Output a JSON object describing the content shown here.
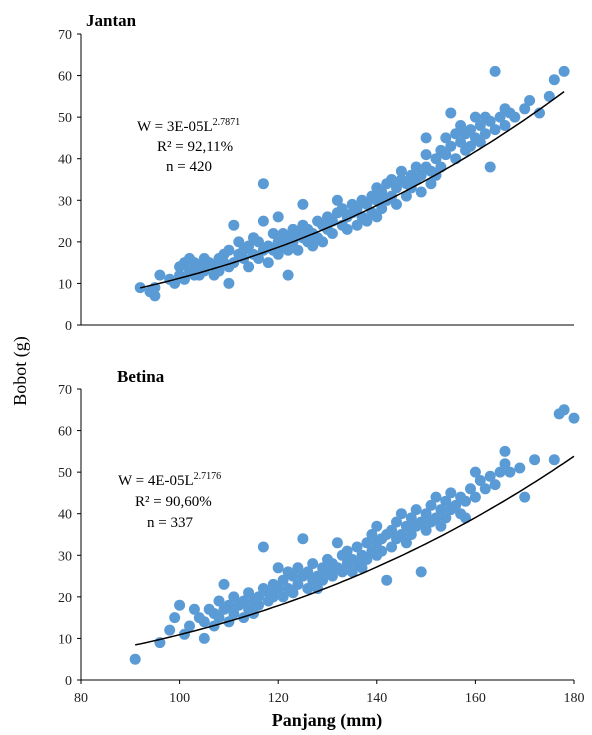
{
  "figure": {
    "ylabel": "Bobot (g)",
    "xlabel": "Panjang (mm)"
  },
  "chart_data": [
    {
      "type": "scatter",
      "title": "Jantan",
      "xlabel": "",
      "ylabel": "Bobot (g)",
      "xlim": [
        80,
        180
      ],
      "ylim": [
        0,
        70
      ],
      "y_ticks": [
        "0",
        "10",
        "20",
        "30",
        "40",
        "50",
        "60",
        "70"
      ],
      "x_ticks": [],
      "equation": {
        "lhs": "W = 3E-05L",
        "exp": "2.7871",
        "r2": "R² = 92,11%",
        "n": "n = 420"
      },
      "trend": {
        "a": 3e-05,
        "b": 2.7871,
        "x_range": [
          92,
          178
        ]
      },
      "points": [
        [
          92,
          9
        ],
        [
          94,
          8
        ],
        [
          95,
          7
        ],
        [
          95,
          9
        ],
        [
          96,
          12
        ],
        [
          98,
          11
        ],
        [
          99,
          10
        ],
        [
          100,
          12
        ],
        [
          100,
          14
        ],
        [
          101,
          15
        ],
        [
          101,
          11
        ],
        [
          102,
          13
        ],
        [
          102,
          16
        ],
        [
          103,
          12
        ],
        [
          103,
          15
        ],
        [
          104,
          14
        ],
        [
          104,
          12
        ],
        [
          105,
          16
        ],
        [
          105,
          13
        ],
        [
          106,
          15
        ],
        [
          107,
          14
        ],
        [
          107,
          12
        ],
        [
          108,
          16
        ],
        [
          108,
          13
        ],
        [
          109,
          17
        ],
        [
          109,
          15
        ],
        [
          110,
          14
        ],
        [
          110,
          18
        ],
        [
          110,
          10
        ],
        [
          111,
          15
        ],
        [
          111,
          24
        ],
        [
          112,
          17
        ],
        [
          112,
          20
        ],
        [
          113,
          16
        ],
        [
          113,
          18
        ],
        [
          114,
          14
        ],
        [
          114,
          19
        ],
        [
          115,
          17
        ],
        [
          115,
          21
        ],
        [
          116,
          16
        ],
        [
          116,
          20
        ],
        [
          117,
          18
        ],
        [
          117,
          34
        ],
        [
          117,
          25
        ],
        [
          118,
          19
        ],
        [
          118,
          15
        ],
        [
          119,
          22
        ],
        [
          119,
          18
        ],
        [
          120,
          20
        ],
        [
          120,
          17
        ],
        [
          120,
          26
        ],
        [
          121,
          19
        ],
        [
          121,
          22
        ],
        [
          122,
          21
        ],
        [
          122,
          18
        ],
        [
          122,
          12
        ],
        [
          123,
          23
        ],
        [
          123,
          20
        ],
        [
          124,
          22
        ],
        [
          124,
          18
        ],
        [
          125,
          24
        ],
        [
          125,
          21
        ],
        [
          125,
          29
        ],
        [
          126,
          20
        ],
        [
          126,
          23
        ],
        [
          127,
          22
        ],
        [
          127,
          19
        ],
        [
          128,
          25
        ],
        [
          128,
          21
        ],
        [
          129,
          24
        ],
        [
          129,
          20
        ],
        [
          130,
          26
        ],
        [
          130,
          23
        ],
        [
          131,
          22
        ],
        [
          131,
          25
        ],
        [
          132,
          30
        ],
        [
          132,
          27
        ],
        [
          133,
          24
        ],
        [
          133,
          28
        ],
        [
          134,
          26
        ],
        [
          134,
          23
        ],
        [
          135,
          29
        ],
        [
          135,
          27
        ],
        [
          136,
          28
        ],
        [
          136,
          24
        ],
        [
          137,
          26
        ],
        [
          137,
          30
        ],
        [
          138,
          29
        ],
        [
          138,
          25
        ],
        [
          139,
          31
        ],
        [
          139,
          27
        ],
        [
          140,
          30
        ],
        [
          140,
          33
        ],
        [
          140,
          26
        ],
        [
          141,
          32
        ],
        [
          141,
          28
        ],
        [
          142,
          34
        ],
        [
          142,
          30
        ],
        [
          143,
          35
        ],
        [
          143,
          31
        ],
        [
          144,
          33
        ],
        [
          144,
          29
        ],
        [
          145,
          35
        ],
        [
          145,
          37
        ],
        [
          146,
          34
        ],
        [
          146,
          31
        ],
        [
          147,
          36
        ],
        [
          147,
          33
        ],
        [
          148,
          35
        ],
        [
          148,
          38
        ],
        [
          149,
          36
        ],
        [
          149,
          32
        ],
        [
          150,
          38
        ],
        [
          150,
          41
        ],
        [
          150,
          45
        ],
        [
          151,
          37
        ],
        [
          151,
          34
        ],
        [
          152,
          40
        ],
        [
          152,
          36
        ],
        [
          153,
          42
        ],
        [
          153,
          38
        ],
        [
          154,
          45
        ],
        [
          154,
          41
        ],
        [
          155,
          51
        ],
        [
          155,
          43
        ],
        [
          156,
          46
        ],
        [
          156,
          40
        ],
        [
          157,
          44
        ],
        [
          157,
          48
        ],
        [
          158,
          42
        ],
        [
          158,
          46
        ],
        [
          159,
          47
        ],
        [
          159,
          43
        ],
        [
          160,
          50
        ],
        [
          160,
          45
        ],
        [
          161,
          48
        ],
        [
          161,
          44
        ],
        [
          162,
          46
        ],
        [
          162,
          50
        ],
        [
          163,
          49
        ],
        [
          163,
          38
        ],
        [
          164,
          61
        ],
        [
          164,
          47
        ],
        [
          165,
          50
        ],
        [
          166,
          48
        ],
        [
          166,
          52
        ],
        [
          167,
          51
        ],
        [
          168,
          50
        ],
        [
          170,
          52
        ],
        [
          171,
          54
        ],
        [
          173,
          51
        ],
        [
          175,
          55
        ],
        [
          176,
          59
        ],
        [
          178,
          61
        ]
      ]
    },
    {
      "type": "scatter",
      "title": "Betina",
      "xlabel": "Panjang (mm)",
      "ylabel": "Bobot (g)",
      "xlim": [
        80,
        180
      ],
      "ylim": [
        0,
        70
      ],
      "y_ticks": [
        "0",
        "10",
        "20",
        "30",
        "40",
        "50",
        "60",
        "70"
      ],
      "x_ticks": [
        "80",
        "100",
        "120",
        "140",
        "160",
        "180"
      ],
      "equation": {
        "lhs": "W = 4E-05L",
        "exp": "2.7176",
        "r2": "R² = 90,60%",
        "n": "n = 337"
      },
      "trend": {
        "a": 4e-05,
        "b": 2.7176,
        "x_range": [
          91,
          180
        ]
      },
      "points": [
        [
          91,
          5
        ],
        [
          96,
          9
        ],
        [
          98,
          12
        ],
        [
          99,
          15
        ],
        [
          100,
          18
        ],
        [
          101,
          11
        ],
        [
          102,
          13
        ],
        [
          103,
          17
        ],
        [
          104,
          15
        ],
        [
          105,
          10
        ],
        [
          105,
          14
        ],
        [
          106,
          17
        ],
        [
          107,
          13
        ],
        [
          107,
          16
        ],
        [
          108,
          19
        ],
        [
          108,
          15
        ],
        [
          109,
          23
        ],
        [
          109,
          17
        ],
        [
          110,
          14
        ],
        [
          110,
          18
        ],
        [
          111,
          20
        ],
        [
          111,
          16
        ],
        [
          112,
          18
        ],
        [
          113,
          15
        ],
        [
          113,
          19
        ],
        [
          114,
          21
        ],
        [
          114,
          17
        ],
        [
          115,
          19
        ],
        [
          115,
          16
        ],
        [
          116,
          20
        ],
        [
          116,
          18
        ],
        [
          117,
          32
        ],
        [
          117,
          22
        ],
        [
          118,
          19
        ],
        [
          118,
          21
        ],
        [
          119,
          23
        ],
        [
          119,
          20
        ],
        [
          120,
          27
        ],
        [
          120,
          22
        ],
        [
          121,
          24
        ],
        [
          121,
          20
        ],
        [
          122,
          26
        ],
        [
          122,
          22
        ],
        [
          123,
          25
        ],
        [
          123,
          21
        ],
        [
          124,
          27
        ],
        [
          124,
          23
        ],
        [
          125,
          34
        ],
        [
          125,
          25
        ],
        [
          126,
          22
        ],
        [
          126,
          26
        ],
        [
          127,
          24
        ],
        [
          127,
          28
        ],
        [
          128,
          25
        ],
        [
          128,
          22
        ],
        [
          129,
          27
        ],
        [
          129,
          24
        ],
        [
          130,
          29
        ],
        [
          130,
          26
        ],
        [
          131,
          28
        ],
        [
          131,
          25
        ],
        [
          132,
          33
        ],
        [
          132,
          27
        ],
        [
          133,
          26
        ],
        [
          133,
          30
        ],
        [
          134,
          28
        ],
        [
          134,
          31
        ],
        [
          135,
          29
        ],
        [
          135,
          26
        ],
        [
          136,
          32
        ],
        [
          136,
          28
        ],
        [
          137,
          30
        ],
        [
          137,
          27
        ],
        [
          138,
          33
        ],
        [
          138,
          29
        ],
        [
          139,
          31
        ],
        [
          139,
          35
        ],
        [
          140,
          33
        ],
        [
          140,
          30
        ],
        [
          140,
          37
        ],
        [
          141,
          34
        ],
        [
          141,
          31
        ],
        [
          142,
          35
        ],
        [
          142,
          24
        ],
        [
          143,
          32
        ],
        [
          143,
          36
        ],
        [
          144,
          34
        ],
        [
          144,
          38
        ],
        [
          145,
          40
        ],
        [
          145,
          35
        ],
        [
          146,
          37
        ],
        [
          146,
          33
        ],
        [
          147,
          39
        ],
        [
          147,
          35
        ],
        [
          148,
          41
        ],
        [
          148,
          37
        ],
        [
          149,
          38
        ],
        [
          149,
          26
        ],
        [
          150,
          40
        ],
        [
          150,
          36
        ],
        [
          151,
          42
        ],
        [
          151,
          38
        ],
        [
          152,
          44
        ],
        [
          152,
          39
        ],
        [
          153,
          41
        ],
        [
          153,
          37
        ],
        [
          154,
          43
        ],
        [
          154,
          39
        ],
        [
          155,
          45
        ],
        [
          155,
          41
        ],
        [
          156,
          42
        ],
        [
          157,
          40
        ],
        [
          157,
          44
        ],
        [
          158,
          43
        ],
        [
          158,
          39
        ],
        [
          159,
          46
        ],
        [
          160,
          50
        ],
        [
          160,
          44
        ],
        [
          161,
          48
        ],
        [
          162,
          46
        ],
        [
          163,
          49
        ],
        [
          164,
          47
        ],
        [
          165,
          50
        ],
        [
          166,
          55
        ],
        [
          166,
          52
        ],
        [
          167,
          50
        ],
        [
          169,
          51
        ],
        [
          170,
          44
        ],
        [
          172,
          53
        ],
        [
          176,
          53
        ],
        [
          177,
          64
        ],
        [
          178,
          65
        ],
        [
          180,
          63
        ]
      ]
    }
  ]
}
